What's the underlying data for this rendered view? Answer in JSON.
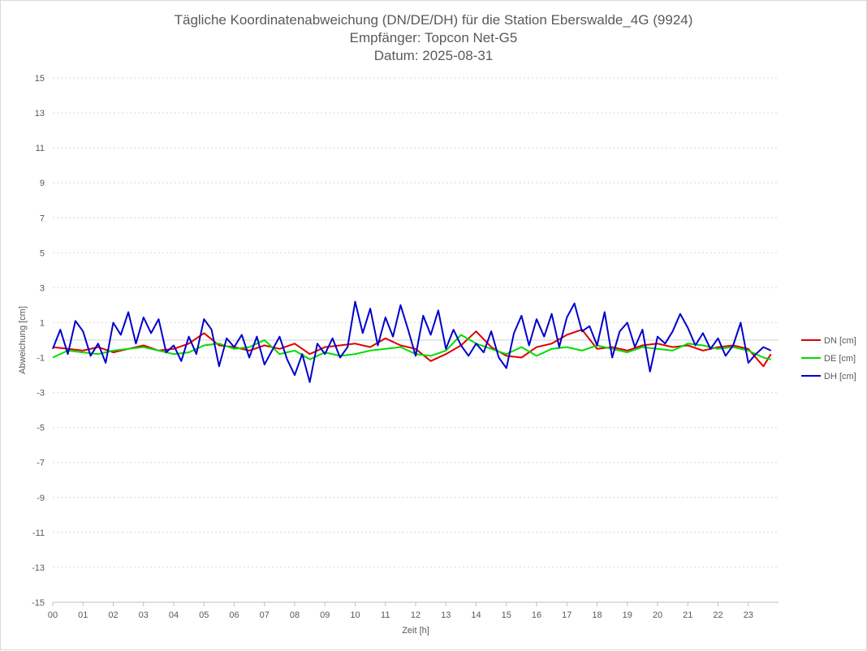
{
  "chart_data": {
    "type": "line",
    "title": [
      "Tägliche Koordinatenabweichung (DN/DE/DH) für die Station Eberswalde_4G (9924)",
      "Empfänger: Topcon Net-G5",
      "Datum: 2025-08-31"
    ],
    "xlabel": "Zeit [h]",
    "ylabel": "Abweichung [cm]",
    "xlim": [
      0,
      24
    ],
    "ylim": [
      -15,
      15
    ],
    "xticks": [
      "00",
      "01",
      "02",
      "03",
      "04",
      "05",
      "06",
      "07",
      "08",
      "09",
      "10",
      "11",
      "12",
      "13",
      "14",
      "15",
      "16",
      "17",
      "18",
      "19",
      "20",
      "21",
      "22",
      "23"
    ],
    "yticks": [
      15,
      13,
      11,
      9,
      7,
      5,
      3,
      1,
      -1,
      -3,
      -5,
      -7,
      -9,
      -11,
      -13,
      -15
    ],
    "grid": true,
    "legend_position": "right",
    "series": [
      {
        "name": "DN [cm]",
        "color": "#e00000",
        "x": [
          0,
          0.5,
          1,
          1.5,
          2,
          2.5,
          3,
          3.5,
          4,
          4.5,
          5,
          5.5,
          6,
          6.5,
          7,
          7.5,
          8,
          8.5,
          9,
          9.5,
          10,
          10.5,
          11,
          11.5,
          12,
          12.5,
          13,
          13.5,
          14,
          14.5,
          15,
          15.5,
          16,
          16.5,
          17,
          17.5,
          18,
          18.5,
          19,
          19.5,
          20,
          20.5,
          21,
          21.5,
          22,
          22.5,
          23,
          23.5,
          23.75
        ],
        "y": [
          -0.4,
          -0.5,
          -0.6,
          -0.4,
          -0.7,
          -0.5,
          -0.3,
          -0.6,
          -0.5,
          -0.2,
          0.4,
          -0.3,
          -0.4,
          -0.6,
          -0.3,
          -0.5,
          -0.2,
          -0.8,
          -0.4,
          -0.3,
          -0.2,
          -0.4,
          0.1,
          -0.3,
          -0.5,
          -1.2,
          -0.8,
          -0.3,
          0.5,
          -0.4,
          -0.9,
          -1.0,
          -0.4,
          -0.2,
          0.3,
          0.6,
          -0.5,
          -0.4,
          -0.6,
          -0.3,
          -0.2,
          -0.4,
          -0.3,
          -0.6,
          -0.4,
          -0.3,
          -0.5,
          -1.5,
          -0.8
        ]
      },
      {
        "name": "DE [cm]",
        "color": "#00dd00",
        "x": [
          0,
          0.5,
          1,
          1.5,
          2,
          2.5,
          3,
          3.5,
          4,
          4.5,
          5,
          5.5,
          6,
          6.5,
          7,
          7.5,
          8,
          8.5,
          9,
          9.5,
          10,
          10.5,
          11,
          11.5,
          12,
          12.5,
          13,
          13.5,
          14,
          14.5,
          15,
          15.5,
          16,
          16.5,
          17,
          17.5,
          18,
          18.5,
          19,
          19.5,
          20,
          20.5,
          21,
          21.5,
          22,
          22.5,
          23,
          23.5,
          23.75
        ],
        "y": [
          -1.0,
          -0.6,
          -0.7,
          -0.8,
          -0.6,
          -0.5,
          -0.4,
          -0.6,
          -0.8,
          -0.7,
          -0.3,
          -0.2,
          -0.5,
          -0.4,
          0.0,
          -0.8,
          -0.6,
          -1.1,
          -0.7,
          -0.9,
          -0.8,
          -0.6,
          -0.5,
          -0.4,
          -0.8,
          -0.9,
          -0.6,
          0.3,
          -0.2,
          -0.5,
          -0.8,
          -0.4,
          -0.9,
          -0.5,
          -0.4,
          -0.6,
          -0.3,
          -0.5,
          -0.7,
          -0.4,
          -0.5,
          -0.6,
          -0.2,
          -0.3,
          -0.5,
          -0.4,
          -0.6,
          -1.0,
          -1.1
        ]
      },
      {
        "name": "DH [cm]",
        "color": "#0000cc",
        "x": [
          0,
          0.25,
          0.5,
          0.75,
          1,
          1.25,
          1.5,
          1.75,
          2,
          2.25,
          2.5,
          2.75,
          3,
          3.25,
          3.5,
          3.75,
          4,
          4.25,
          4.5,
          4.75,
          5,
          5.25,
          5.5,
          5.75,
          6,
          6.25,
          6.5,
          6.75,
          7,
          7.25,
          7.5,
          7.75,
          8,
          8.25,
          8.5,
          8.75,
          9,
          9.25,
          9.5,
          9.75,
          10,
          10.25,
          10.5,
          10.75,
          11,
          11.25,
          11.5,
          11.75,
          12,
          12.25,
          12.5,
          12.75,
          13,
          13.25,
          13.5,
          13.75,
          14,
          14.25,
          14.5,
          14.75,
          15,
          15.25,
          15.5,
          15.75,
          16,
          16.25,
          16.5,
          16.75,
          17,
          17.25,
          17.5,
          17.75,
          18,
          18.25,
          18.5,
          18.75,
          19,
          19.25,
          19.5,
          19.75,
          20,
          20.25,
          20.5,
          20.75,
          21,
          21.25,
          21.5,
          21.75,
          22,
          22.25,
          22.5,
          22.75,
          23,
          23.25,
          23.5,
          23.75
        ],
        "y": [
          -0.5,
          0.6,
          -0.8,
          1.1,
          0.5,
          -0.9,
          -0.2,
          -1.3,
          1.0,
          0.3,
          1.6,
          -0.2,
          1.3,
          0.4,
          1.2,
          -0.7,
          -0.3,
          -1.2,
          0.2,
          -0.8,
          1.2,
          0.6,
          -1.5,
          0.1,
          -0.4,
          0.3,
          -1.0,
          0.2,
          -1.4,
          -0.6,
          0.2,
          -1.1,
          -2.0,
          -0.8,
          -2.4,
          -0.2,
          -0.8,
          0.1,
          -1.0,
          -0.4,
          2.2,
          0.4,
          1.8,
          -0.3,
          1.3,
          0.2,
          2.0,
          0.6,
          -0.9,
          1.4,
          0.3,
          1.7,
          -0.5,
          0.6,
          -0.3,
          -0.9,
          -0.2,
          -0.7,
          0.5,
          -1.0,
          -1.6,
          0.4,
          1.4,
          -0.3,
          1.2,
          0.2,
          1.5,
          -0.4,
          1.3,
          2.1,
          0.5,
          0.8,
          -0.3,
          1.6,
          -1.0,
          0.5,
          1.0,
          -0.4,
          0.6,
          -1.8,
          0.2,
          -0.2,
          0.5,
          1.5,
          0.7,
          -0.3,
          0.4,
          -0.5,
          0.1,
          -0.9,
          -0.3,
          1.0,
          -1.3,
          -0.8,
          -0.4,
          -0.6
        ]
      }
    ]
  }
}
